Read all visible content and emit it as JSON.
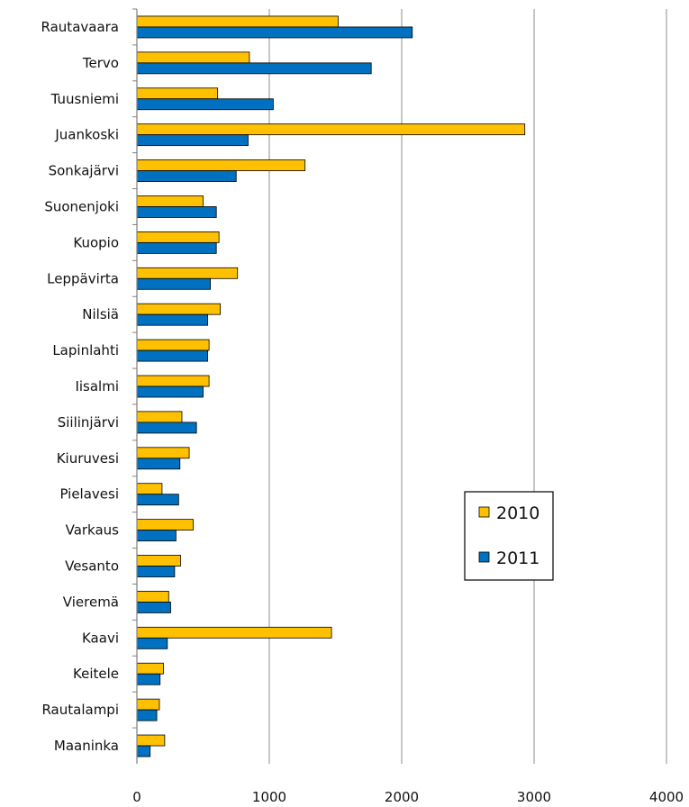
{
  "chart_data": {
    "type": "bar",
    "orientation": "horizontal",
    "title": "",
    "xlabel": "",
    "ylabel": "",
    "xlim": [
      0,
      4000
    ],
    "x_ticks": [
      0,
      1000,
      2000,
      3000,
      4000
    ],
    "grid": "vertical",
    "legend_position": "center-right",
    "categories": [
      "Rautavaara",
      "Tervo",
      "Tuusniemi",
      "Juankoski",
      "Sonkajärvi",
      "Suonenjoki",
      "Kuopio",
      "Leppävirta",
      "Nilsiä",
      "Lapinlahti",
      "Iisalmi",
      "Siilinjärvi",
      "Kiuruvesi",
      "Pielavesi",
      "Varkaus",
      "Vesanto",
      "Vieremä",
      "Kaavi",
      "Keitele",
      "Rautalampi",
      "Maaninka"
    ],
    "series": [
      {
        "name": "2010",
        "color": "#FFC000",
        "values": [
          1520,
          850,
          610,
          2930,
          1270,
          500,
          620,
          760,
          630,
          545,
          545,
          340,
          395,
          190,
          425,
          330,
          240,
          1470,
          200,
          170,
          210
        ]
      },
      {
        "name": "2011",
        "color": "#0070C0",
        "values": [
          2080,
          1770,
          1030,
          840,
          750,
          600,
          600,
          555,
          535,
          535,
          500,
          450,
          325,
          315,
          295,
          285,
          255,
          230,
          175,
          150,
          100
        ]
      }
    ]
  }
}
